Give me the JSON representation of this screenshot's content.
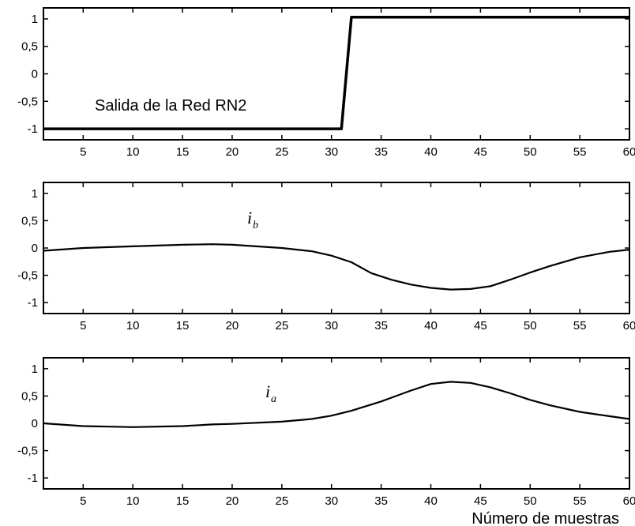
{
  "chart_data": [
    {
      "type": "line",
      "xlim": [
        1,
        60
      ],
      "ylim": [
        -1.2,
        1.2
      ],
      "xticks": [
        5,
        10,
        15,
        20,
        25,
        30,
        35,
        40,
        45,
        50,
        55,
        60
      ],
      "yticks": [
        -1,
        -0.5,
        0,
        0.5,
        1
      ],
      "ytick_labels": [
        "-1",
        "-0,5",
        "0",
        "0,5",
        "1"
      ],
      "annotation": {
        "text": "Salida de la Red RN2"
      },
      "series": [
        {
          "x": [
            1,
            31,
            32,
            60
          ],
          "y": [
            -1,
            -1,
            1.03,
            1.03
          ]
        }
      ]
    },
    {
      "type": "line",
      "xlim": [
        1,
        60
      ],
      "ylim": [
        -1.2,
        1.2
      ],
      "xticks": [
        5,
        10,
        15,
        20,
        25,
        30,
        35,
        40,
        45,
        50,
        55,
        60
      ],
      "yticks": [
        -1,
        -0.5,
        0,
        0.5,
        1
      ],
      "ytick_labels": [
        "-1",
        "-0,5",
        "0",
        "0,5",
        "1"
      ],
      "annotation": {
        "text": "i",
        "subscript": "b"
      },
      "series": [
        {
          "x": [
            1,
            5,
            10,
            15,
            18,
            20,
            25,
            28,
            30,
            32,
            34,
            36,
            38,
            40,
            42,
            44,
            46,
            48,
            50,
            52,
            55,
            58,
            60
          ],
          "y": [
            -0.05,
            0,
            0.03,
            0.06,
            0.07,
            0.06,
            0.0,
            -0.06,
            -0.14,
            -0.26,
            -0.46,
            -0.58,
            -0.67,
            -0.73,
            -0.76,
            -0.75,
            -0.7,
            -0.58,
            -0.45,
            -0.33,
            -0.17,
            -0.07,
            -0.03
          ]
        }
      ]
    },
    {
      "type": "line",
      "xlim": [
        1,
        60
      ],
      "ylim": [
        -1.2,
        1.2
      ],
      "xticks": [
        5,
        10,
        15,
        20,
        25,
        30,
        35,
        40,
        45,
        50,
        55,
        60
      ],
      "yticks": [
        -1,
        -0.5,
        0,
        0.5,
        1
      ],
      "ytick_labels": [
        "-1",
        "-0,5",
        "0",
        "0,5",
        "1"
      ],
      "annotation": {
        "text": "i",
        "subscript": "a"
      },
      "xlabel": "Número de muestras",
      "series": [
        {
          "x": [
            1,
            5,
            10,
            15,
            18,
            20,
            25,
            28,
            30,
            32,
            35,
            38,
            40,
            42,
            44,
            46,
            48,
            50,
            52,
            55,
            58,
            60
          ],
          "y": [
            0,
            -0.05,
            -0.07,
            -0.05,
            -0.02,
            -0.01,
            0.03,
            0.08,
            0.14,
            0.23,
            0.4,
            0.6,
            0.72,
            0.76,
            0.74,
            0.66,
            0.55,
            0.43,
            0.33,
            0.21,
            0.13,
            0.08
          ]
        }
      ]
    }
  ]
}
